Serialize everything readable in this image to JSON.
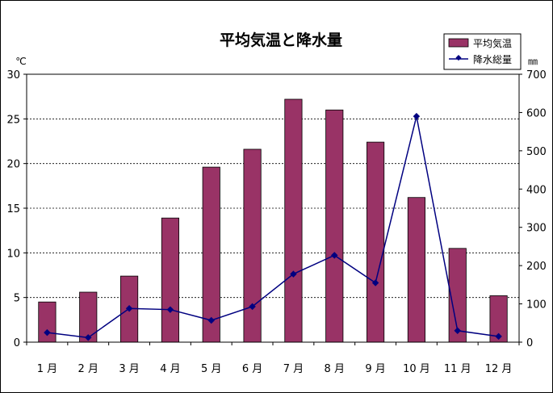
{
  "chart_data": {
    "type": "bar+line",
    "title": "平均気温と降水量",
    "categories": [
      "1 月",
      "2 月",
      "3 月",
      "4 月",
      "5 月",
      "6 月",
      "7 月",
      "8 月",
      "9 月",
      "10 月",
      "11 月",
      "12 月"
    ],
    "series": [
      {
        "name": "平均気温",
        "type": "bar",
        "axis": "left",
        "color": "#993366",
        "values": [
          4.5,
          5.6,
          7.4,
          13.9,
          19.6,
          21.6,
          27.2,
          26.0,
          22.4,
          16.2,
          10.5,
          5.2
        ]
      },
      {
        "name": "降水総量",
        "type": "line",
        "axis": "right",
        "color": "#000080",
        "values": [
          25,
          12,
          88,
          85,
          57,
          93,
          178,
          227,
          155,
          590,
          30,
          15
        ]
      }
    ],
    "y_left": {
      "unit": "℃",
      "ylim": [
        0,
        30
      ],
      "ticks": [
        "0",
        "5",
        "10",
        "15",
        "20",
        "25",
        "30"
      ]
    },
    "y_right": {
      "unit": "㎜",
      "ylim": [
        0,
        700
      ],
      "ticks": [
        "0",
        "100",
        "200",
        "300",
        "400",
        "500",
        "600",
        "700"
      ]
    },
    "grid": true,
    "legend_position": "top-right"
  }
}
